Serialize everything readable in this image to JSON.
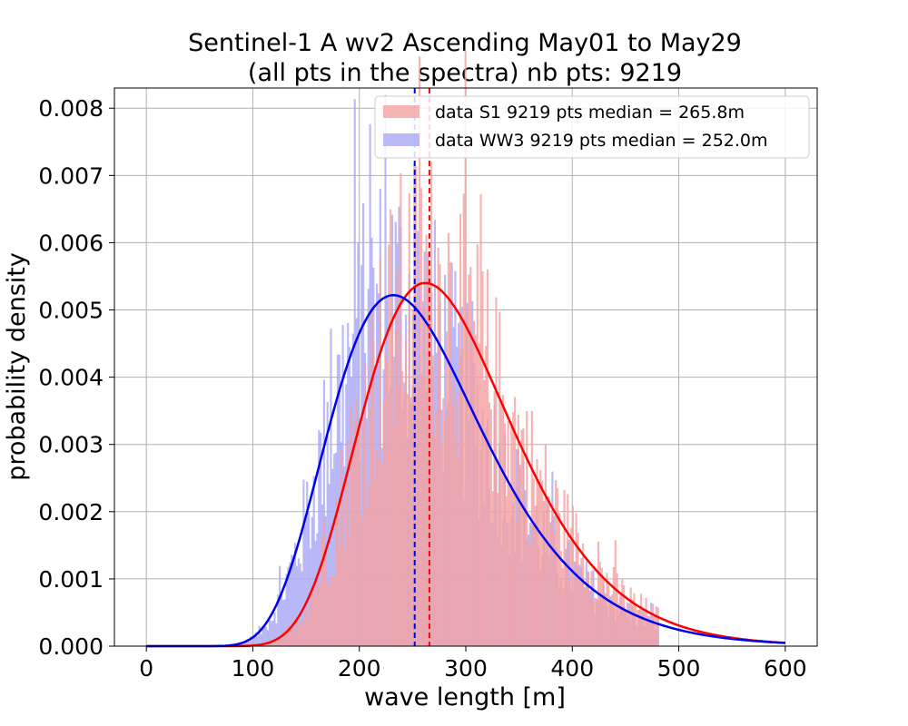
{
  "chart_data": {
    "type": "histogram",
    "title_line1": "Sentinel-1 A wv2 Ascending May01 to May29",
    "title_line2": "(all pts in the spectra) nb pts: 9219",
    "xlabel": "wave length [m]",
    "ylabel": "probability density",
    "xlim": [
      -30,
      630
    ],
    "ylim": [
      0,
      0.0083
    ],
    "xticks": [
      0,
      100,
      200,
      300,
      400,
      500,
      600
    ],
    "xtick_labels": [
      "0",
      "100",
      "200",
      "300",
      "400",
      "500",
      "600"
    ],
    "yticks": [
      0,
      0.001,
      0.002,
      0.003,
      0.004,
      0.005,
      0.006,
      0.007,
      0.008
    ],
    "ytick_labels": [
      "0.000",
      "0.001",
      "0.002",
      "0.003",
      "0.004",
      "0.005",
      "0.006",
      "0.007",
      "0.008"
    ],
    "grid": true,
    "legend_position": "top-right",
    "series": [
      {
        "name": "data S1 9219 pts median = 265.8m",
        "bar_color": "#f4a3a3",
        "line_color": "#ff0000",
        "median": 265.8,
        "fit_peak_x": 262,
        "fit_peak_y": 0.0054
      },
      {
        "name": "data WW3 9219 pts median = 252.0m",
        "bar_color": "#a9a9f7",
        "line_color": "#0000ee",
        "median": 252.0,
        "fit_peak_x": 232,
        "fit_peak_y": 0.00522
      }
    ]
  }
}
